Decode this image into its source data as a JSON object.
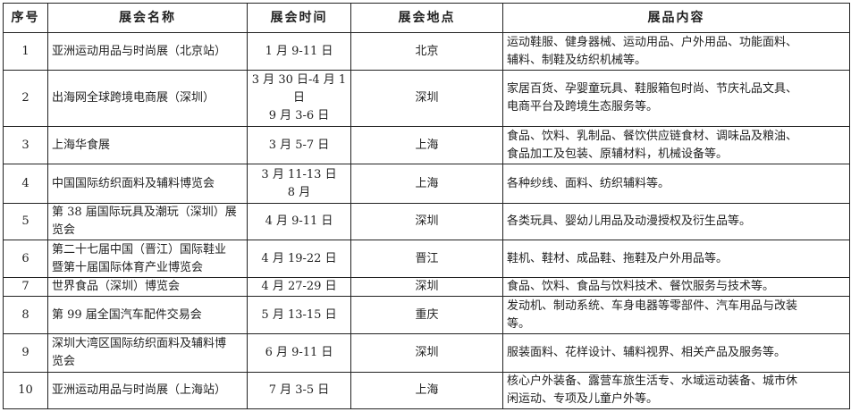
{
  "headers": [
    "序号",
    "展会名称",
    "展会时间",
    "展会地点",
    "展品内容"
  ],
  "rows": [
    {
      "no": "1",
      "name": "亚洲运动用品与时尚展（北京站）",
      "time": "1 月 9-11 日",
      "place": "北京",
      "content": "运动鞋服、健身器械、运动用品、户外用品、功能面料、\n辅料、制鞋及纺织机械等。"
    },
    {
      "no": "2",
      "name": "出海网全球跨境电商展（深圳）",
      "time": "3 月 30 日-4 月 1\n日\n9 月 3-6 日",
      "place": "深圳",
      "content": "家居百货、孕婴童玩具、鞋服箱包时尚、节庆礼品文具、\n电商平台及跨境生态服务等。"
    },
    {
      "no": "3",
      "name": "上海华食展",
      "time": "3 月 5-7 日",
      "place": "上海",
      "content": "食品、饮料、乳制品、餐饮供应链食材、调味品及粮油、\n食品加工及包装、原辅材料，机械设备等。"
    },
    {
      "no": "4",
      "name": "中国国际纺织面料及辅料博览会",
      "time": "3 月 11-13 日\n8 月",
      "place": "上海",
      "content": "各种纱线、面料、纺织辅料等。"
    },
    {
      "no": "5",
      "name": "第 38 届国际玩具及潮玩（深圳）展\n览会",
      "time": "4 月 9-11 日",
      "place": "深圳",
      "content": "各类玩具、婴幼儿用品及动漫授权及衍生品等。"
    },
    {
      "no": "6",
      "name": "第二十七届中国（晋江）国际鞋业\n暨第十届国际体育产业博览会",
      "time": "4 月 19-22 日",
      "place": "晋江",
      "content": "鞋机、鞋材、成品鞋、拖鞋及户外用品等。"
    },
    {
      "no": "7",
      "name": "世界食品（深圳）博览会",
      "time": "4 月 27-29 日",
      "place": "深圳",
      "content": "食品、饮料、食品与饮料技术、餐饮服务与技术等。"
    },
    {
      "no": "8",
      "name": "第 99 届全国汽车配件交易会",
      "time": "5 月 13-15 日",
      "place": "重庆",
      "content": "发动机、制动系统、车身电器等零部件、汽车用品与改装\n等。"
    },
    {
      "no": "9",
      "name": "深圳大湾区国际纺织面料及辅料博\n览会",
      "time": "6 月 9-11 日",
      "place": "深圳",
      "content": "服装面料、花样设计、辅料视界、相关产品及服务等。"
    },
    {
      "no": "10",
      "name": "亚洲运动用品与时尚展（上海站）",
      "time": "7 月 3-5 日",
      "place": "上海",
      "content": "核心户外装备、露营车旅生活专、水域运动装备、城市休\n闲运动、专项及儿童户外等。"
    }
  ]
}
